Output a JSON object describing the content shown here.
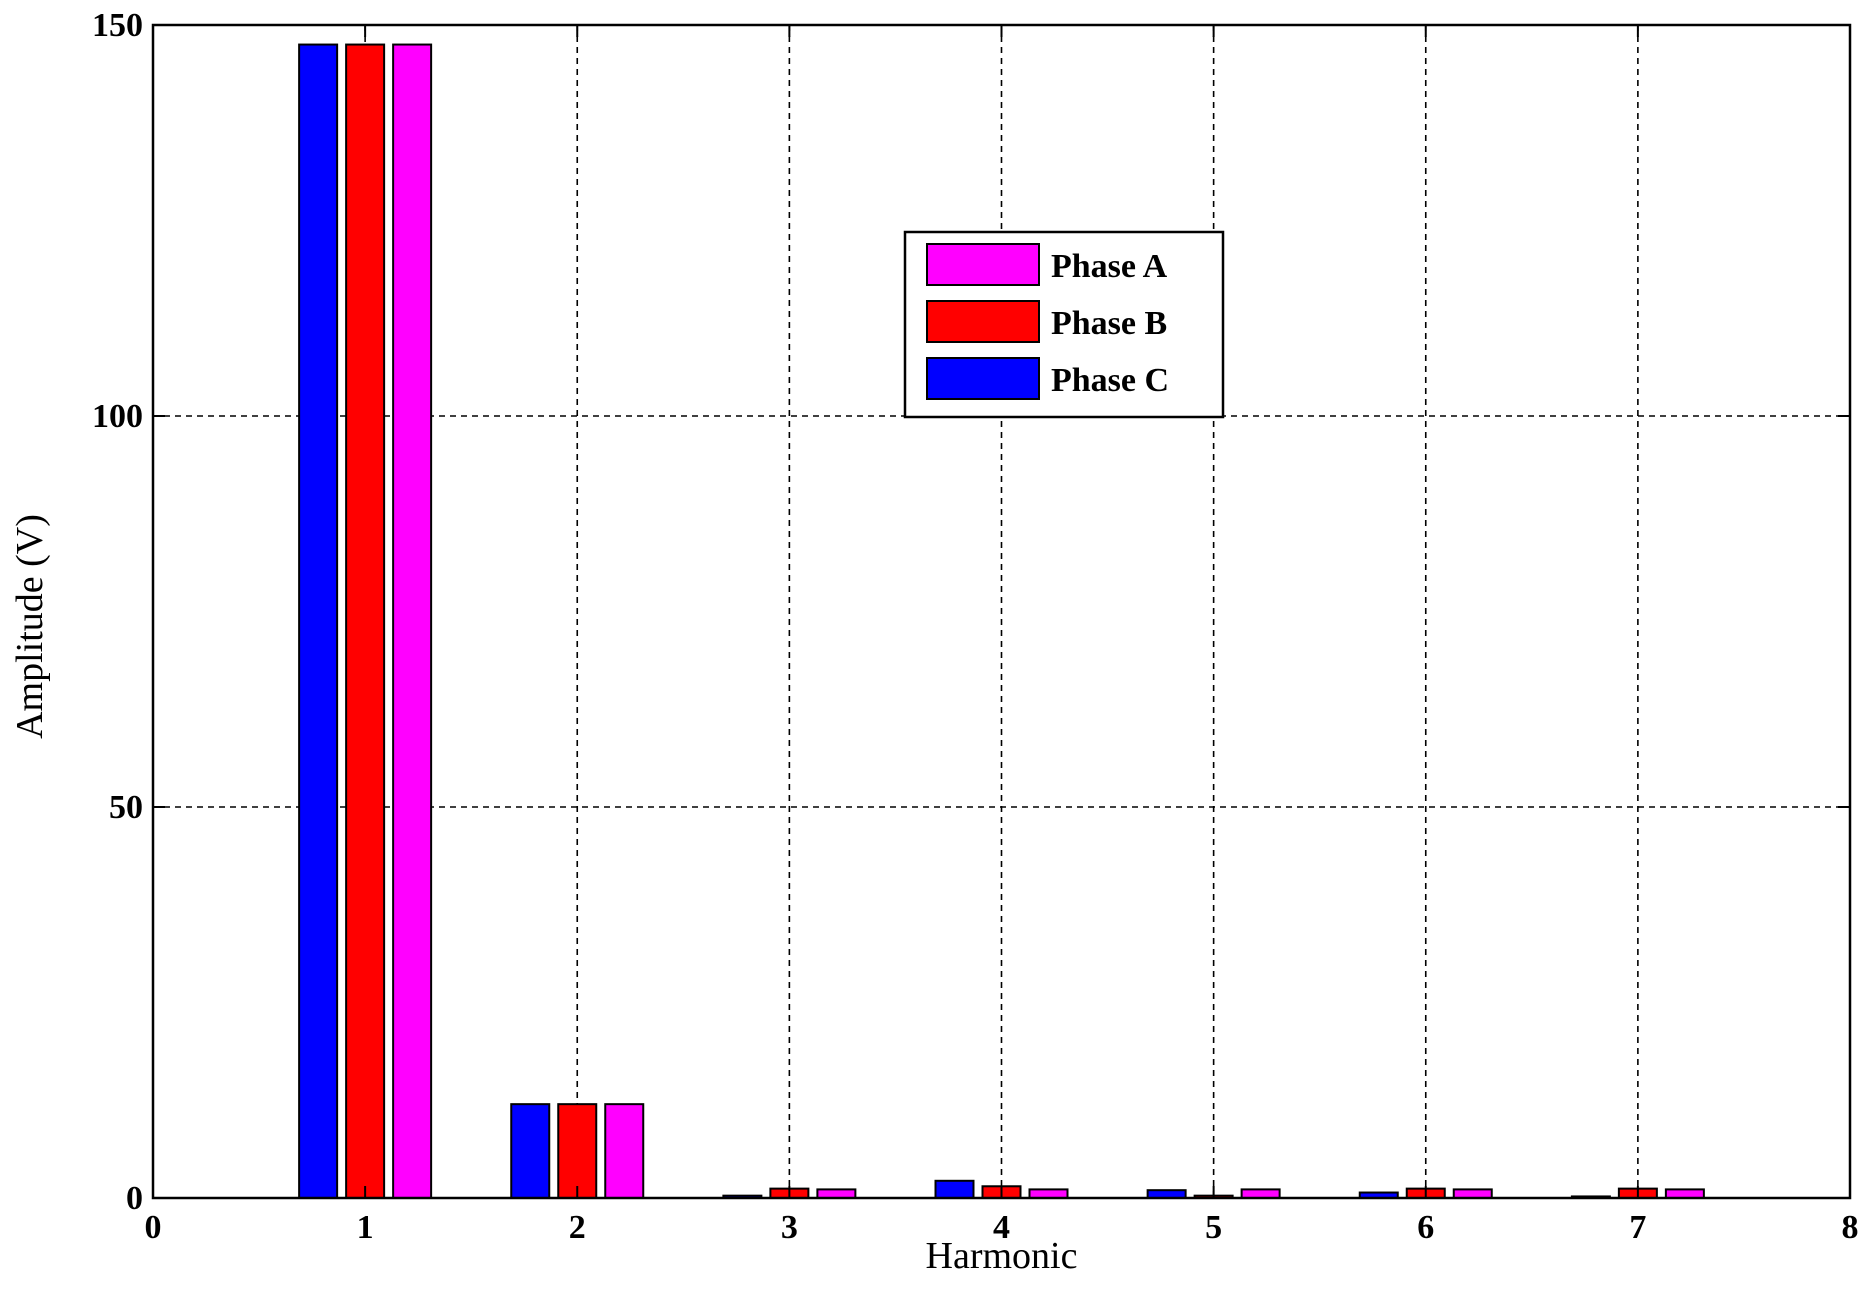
{
  "chart_data": {
    "type": "bar",
    "title": "",
    "xlabel": "Harmonic",
    "ylabel": "Amplitude (V)",
    "xlim": [
      0,
      8
    ],
    "ylim": [
      0,
      150
    ],
    "xticks": [
      "0",
      "1",
      "2",
      "3",
      "4",
      "5",
      "6",
      "7",
      "8"
    ],
    "yticks": [
      "0",
      "50",
      "100",
      "150"
    ],
    "grid": true,
    "legend_position": "top-center",
    "categories": [
      1,
      2,
      3,
      4,
      5,
      6,
      7
    ],
    "series": [
      {
        "name": "Phase C",
        "color": "#0000ff",
        "values": [
          147.5,
          12,
          0.3,
          2.2,
          1.0,
          0.7,
          0.2
        ]
      },
      {
        "name": "Phase B",
        "color": "#ff0000",
        "values": [
          147.5,
          12,
          1.2,
          1.5,
          0.3,
          1.2,
          1.2
        ]
      },
      {
        "name": "Phase A",
        "color": "#ff00ff",
        "values": [
          147.5,
          12,
          1.1,
          1.1,
          1.1,
          1.1,
          1.1
        ]
      }
    ],
    "legend_order": [
      "Phase A",
      "Phase B",
      "Phase C"
    ]
  }
}
